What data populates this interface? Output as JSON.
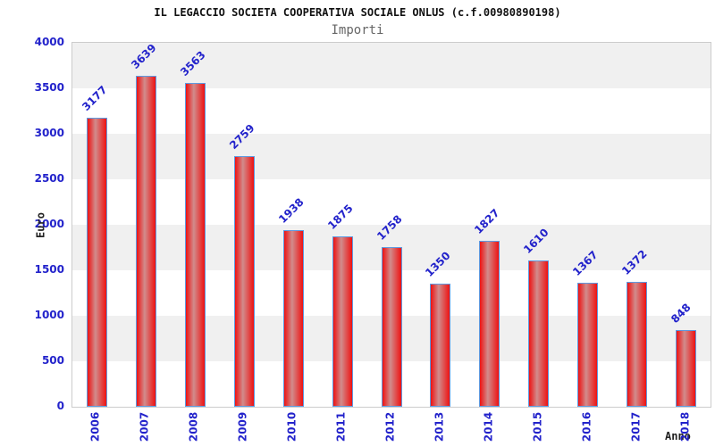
{
  "chart_data": {
    "type": "bar",
    "title": "IL LEGACCIO SOCIETA COOPERATIVA SOCIALE ONLUS (c.f.00980890198)",
    "subtitle": "Importi",
    "xlabel": "Anno",
    "ylabel": "Euro",
    "categories": [
      "2006",
      "2007",
      "2008",
      "2009",
      "2010",
      "2011",
      "2012",
      "2013",
      "2014",
      "2015",
      "2016",
      "2017",
      "2018"
    ],
    "values": [
      3177,
      3639,
      3563,
      2759,
      1938,
      1875,
      1758,
      1350,
      1827,
      1610,
      1367,
      1372,
      848
    ],
    "ylim": [
      0,
      4000
    ],
    "ytick_step": 500,
    "grid": "alternating-horizontal-bands",
    "legend_visible": false,
    "bar_labels_rotated_deg": -45,
    "xtick_rotation_deg": -90
  },
  "colors": {
    "tick_text": "#2323cb",
    "bar_value_text": "#2323cb",
    "bar_border": "#5e9ae0",
    "bar_red_edge": "#ee1212",
    "bar_red_mid": "#d18c8c",
    "band_gray": "#f0f0f0",
    "band_white": "#ffffff",
    "plot_border": "#cccccc",
    "title_text": "#111111",
    "subtitle_text": "#666666",
    "axis_label_text": "#222222",
    "background": "#ffffff"
  }
}
